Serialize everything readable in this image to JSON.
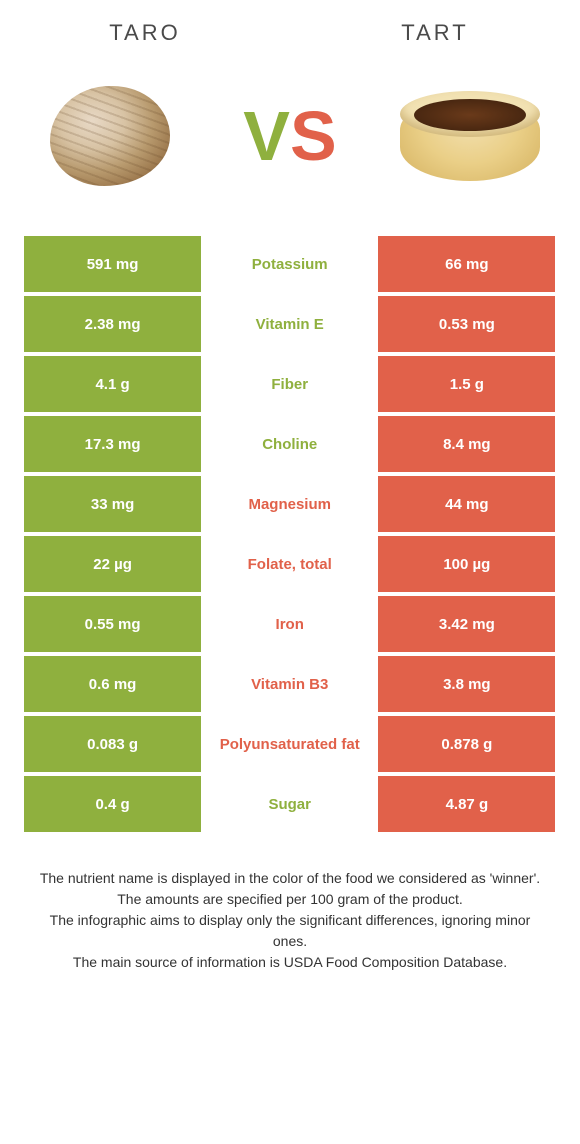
{
  "colors": {
    "green": "#8fb03e",
    "orange": "#e1614a",
    "mid_text_green": "#8fb03e",
    "mid_text_orange": "#e1614a"
  },
  "header": {
    "left": "Taro",
    "right": "Tart"
  },
  "vs": {
    "v": "V",
    "s": "S"
  },
  "rows": [
    {
      "left": "591 mg",
      "label": "Potassium",
      "right": "66 mg",
      "winner": "left"
    },
    {
      "left": "2.38 mg",
      "label": "Vitamin E",
      "right": "0.53 mg",
      "winner": "left"
    },
    {
      "left": "4.1 g",
      "label": "Fiber",
      "right": "1.5 g",
      "winner": "left"
    },
    {
      "left": "17.3 mg",
      "label": "Choline",
      "right": "8.4 mg",
      "winner": "left"
    },
    {
      "left": "33 mg",
      "label": "Magnesium",
      "right": "44 mg",
      "winner": "right"
    },
    {
      "left": "22 µg",
      "label": "Folate, total",
      "right": "100 µg",
      "winner": "right"
    },
    {
      "left": "0.55 mg",
      "label": "Iron",
      "right": "3.42 mg",
      "winner": "right"
    },
    {
      "left": "0.6 mg",
      "label": "Vitamin B3",
      "right": "3.8 mg",
      "winner": "right"
    },
    {
      "left": "0.083 g",
      "label": "Polyunsaturated fat",
      "right": "0.878 g",
      "winner": "right"
    },
    {
      "left": "0.4 g",
      "label": "Sugar",
      "right": "4.87 g",
      "winner": "left"
    }
  ],
  "footer": {
    "l1": "The nutrient name is displayed in the color of the food we considered as 'winner'.",
    "l2": "The amounts are specified per 100 gram of the product.",
    "l3": "The infographic aims to display only the significant differences, ignoring minor ones.",
    "l4": "The main source of information is USDA Food Composition Database."
  }
}
